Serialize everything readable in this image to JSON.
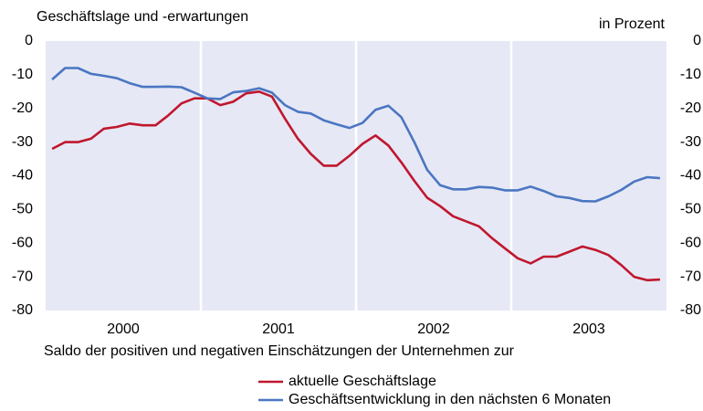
{
  "chart_data": {
    "type": "line",
    "title": "Geschäftslage und -erwartungen",
    "unit_label": "in Prozent",
    "xlabel": "Saldo der positiven und negativen Einschätzungen der Unternehmen zur",
    "categories": [
      "2000",
      null,
      null,
      null,
      null,
      null,
      null,
      null,
      null,
      null,
      null,
      null,
      "2001",
      null,
      null,
      null,
      null,
      null,
      null,
      null,
      null,
      null,
      null,
      null,
      "2002",
      null,
      null,
      null,
      null,
      null,
      null,
      null,
      null,
      null,
      null,
      null,
      "2003",
      null,
      null,
      null,
      null,
      null,
      null,
      null,
      null,
      null,
      null,
      null
    ],
    "series": [
      {
        "name": "aktuelle Geschäftslage",
        "color": "#c0172e",
        "values": [
          -32,
          -30,
          -30,
          -29,
          -26,
          -25.5,
          -24.5,
          -25,
          -25,
          -22,
          -18.5,
          -17,
          -17,
          -19,
          -18,
          -15.5,
          -15,
          -16.5,
          -23,
          -29,
          -33.5,
          -37,
          -37,
          -34,
          -30.5,
          -28,
          -31,
          -36,
          -41.5,
          -46.5,
          -49,
          -52,
          -53.5,
          -55,
          -58.5,
          -61.5,
          -64.5,
          -66,
          -64,
          -64,
          -62.5,
          -61,
          -62,
          -63.5,
          -66.5,
          -70,
          -71,
          -70.8
        ]
      },
      {
        "name": "Geschäftsentwicklung in den nächsten 6 Monaten",
        "color": "#4a76c2",
        "values": [
          -11.4,
          -8,
          -8,
          -9.7,
          -10.3,
          -11,
          -12.5,
          -13.6,
          -13.6,
          -13.5,
          -13.7,
          -15.3,
          -17,
          -17.2,
          -15.2,
          -14.8,
          -14,
          -15.3,
          -19,
          -21,
          -21.5,
          -23.5,
          -24.7,
          -25.8,
          -24.3,
          -20.4,
          -19.2,
          -22.6,
          -30,
          -38.2,
          -42.8,
          -44,
          -44,
          -43.3,
          -43.5,
          -44.3,
          -44.3,
          -43.2,
          -44.5,
          -46.1,
          -46.6,
          -47.5,
          -47.6,
          -46.1,
          -44.2,
          -41.7,
          -40.4,
          -40.7
        ]
      }
    ],
    "ylim": [
      -80,
      0
    ],
    "yticks": [
      0,
      -10,
      -20,
      -30,
      -40,
      -50,
      -60,
      -70,
      -80
    ],
    "y2lim": [
      -80,
      0
    ],
    "y2ticks": [
      0,
      -10,
      -20,
      -30,
      -40,
      -50,
      -60,
      -70,
      -80
    ],
    "plot_background": "#e6e8f5",
    "legend": "bottom"
  }
}
